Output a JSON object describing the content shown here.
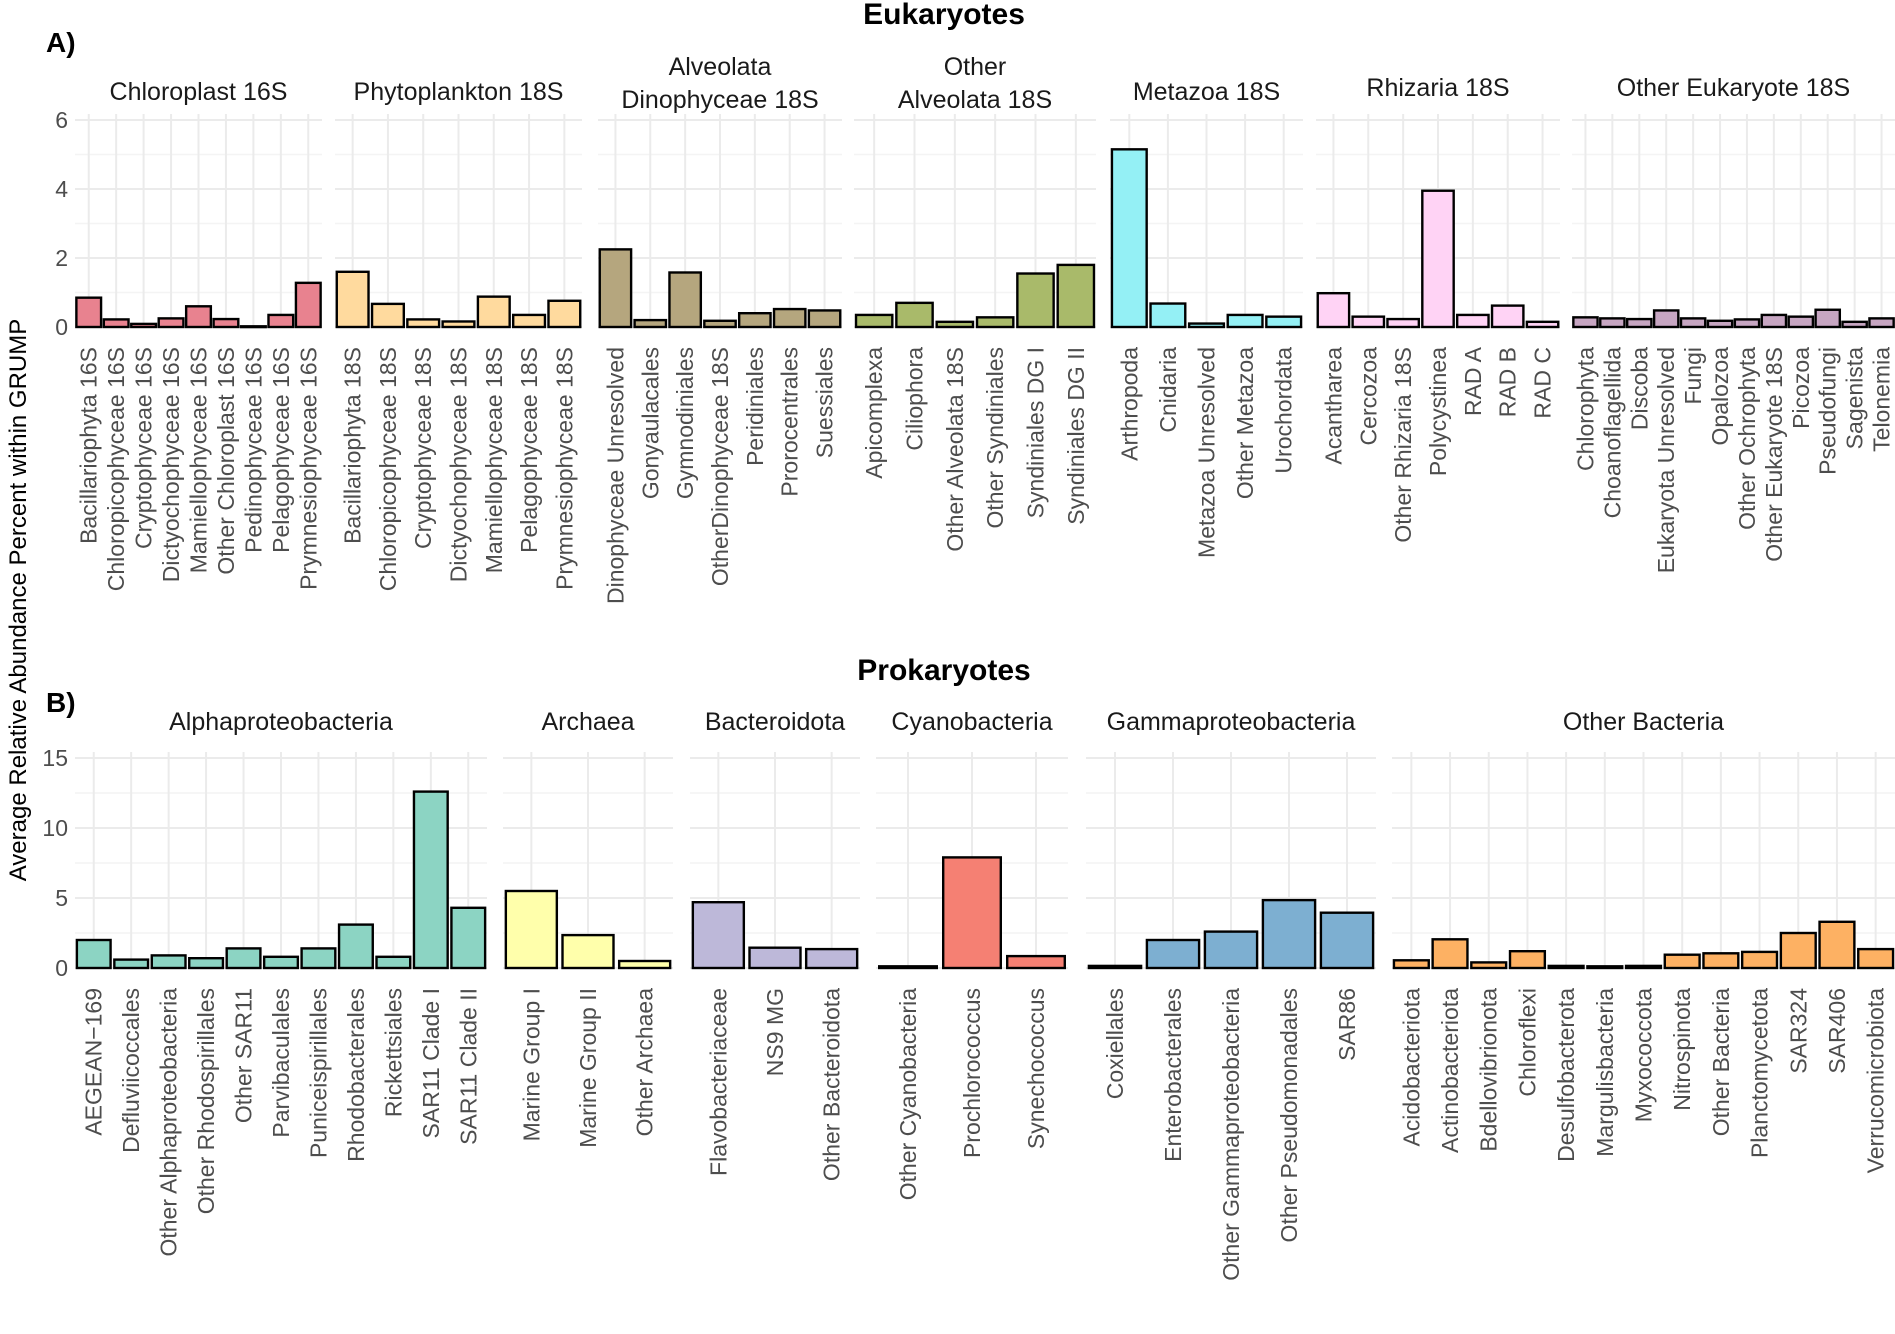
{
  "y_axis_label": "Average Relative Abundance Percent within GRUMP",
  "chart_data": [
    {
      "panel_label": "A)",
      "title": "Eukaryotes",
      "type": "bar",
      "ylim": [
        0,
        6
      ],
      "yticks": [
        0,
        2,
        4,
        6
      ],
      "facets": [
        {
          "title": "Chloroplast 16S",
          "color": "#E8828F",
          "categories": [
            "Bacillariophyta 16S",
            "Chloropicophyceae 16S",
            "Cryptophyceae 16S",
            "Dictyochophyceae 16S",
            "Mamiellophyceae 16S",
            "Other Chloroplast 16S",
            "Pedinophyceae 16S",
            "Pelagophyceae 16S",
            "Prymnesiophyceae 16S"
          ],
          "values": [
            0.85,
            0.22,
            0.09,
            0.25,
            0.6,
            0.23,
            0.02,
            0.35,
            1.28
          ]
        },
        {
          "title": "Phytoplankton 18S",
          "color": "#FFDA9E",
          "categories": [
            "Bacillariophyta 18S",
            "Chloropicophyceae 18S",
            "Cryptophyceae 18S",
            "Dictyochophyceae 18S",
            "Mamiellophyceae 18S",
            "Pelagophyceae 18S",
            "Prymnesiophyceae 18S"
          ],
          "values": [
            1.6,
            0.67,
            0.22,
            0.16,
            0.88,
            0.35,
            0.76
          ]
        },
        {
          "title": "Alveolata\nDinophyceae 18S",
          "color": "#B5A67E",
          "categories": [
            "Dinophyceae Unresolved",
            "Gonyaulacales",
            "Gymnodiniales",
            "OtherDinophyceae 18S",
            "Peridiniales",
            "Prorocentrales",
            "Suessiales"
          ],
          "values": [
            2.25,
            0.2,
            1.58,
            0.18,
            0.4,
            0.52,
            0.48
          ]
        },
        {
          "title": "Other\nAlveolata 18S",
          "color": "#A9BA6A",
          "categories": [
            "Apicomplexa",
            "Ciliophora",
            "Other Alveolata 18S",
            "Other Syndiniales",
            "Syndiniales DG I",
            "Syndiniales DG II"
          ],
          "values": [
            0.35,
            0.7,
            0.15,
            0.28,
            1.55,
            1.8
          ]
        },
        {
          "title": "Metazoa 18S",
          "color": "#94F0F5",
          "categories": [
            "Arthropoda",
            "Cnidaria",
            "Metazoa Unresolved",
            "Other Metazoa",
            "Urochordata"
          ],
          "values": [
            5.15,
            0.68,
            0.1,
            0.35,
            0.3
          ]
        },
        {
          "title": "Rhizaria 18S",
          "color": "#FFD3F5",
          "categories": [
            "Acantharea",
            "Cercozoa",
            "Other Rhizaria 18S",
            "Polycystinea",
            "RAD A",
            "RAD B",
            "RAD C"
          ],
          "values": [
            0.98,
            0.3,
            0.23,
            3.95,
            0.35,
            0.62,
            0.15
          ]
        },
        {
          "title": "Other Eukaryote 18S",
          "color": "#C7A6C2",
          "categories": [
            "Chlorophyta",
            "Choanoflagellida",
            "Discoba",
            "Eukaryota Unresolved",
            "Fungi",
            "Opalozoa",
            "Other Ochrophyta",
            "Other Eukaryote 18S",
            "Picozoa",
            "Pseudofungi",
            "Sagenista",
            "Telonemia"
          ],
          "values": [
            0.28,
            0.25,
            0.23,
            0.48,
            0.25,
            0.18,
            0.22,
            0.35,
            0.3,
            0.5,
            0.15,
            0.25
          ]
        }
      ]
    },
    {
      "panel_label": "B)",
      "title": "Prokaryotes",
      "type": "bar",
      "ylim": [
        0,
        15
      ],
      "yticks": [
        0,
        5,
        10,
        15
      ],
      "facets": [
        {
          "title": "Alphaproteobacteria",
          "color": "#8CD4C3",
          "categories": [
            "AEGEAN−169",
            "Defluviicoccales",
            "Other Alphaproteobacteria",
            "Other Rhodospirillales",
            "Other SAR11",
            "Parvibaculales",
            "Puniceispirillales",
            "Rhodobacterales",
            "Rickettsiales",
            "SAR11 Clade I",
            "SAR11 Clade II"
          ],
          "values": [
            2.0,
            0.6,
            0.9,
            0.7,
            1.4,
            0.8,
            1.4,
            3.1,
            0.8,
            12.6,
            4.3
          ]
        },
        {
          "title": "Archaea",
          "color": "#FFFFAB",
          "categories": [
            "Marine Group I",
            "Marine Group II",
            "Other Archaea"
          ],
          "values": [
            5.5,
            2.35,
            0.5
          ]
        },
        {
          "title": "Bacteroidota",
          "color": "#BDB8D9",
          "categories": [
            "Flavobacteriaceae",
            "NS9 MG",
            "Other Bacteroidota"
          ],
          "values": [
            4.7,
            1.45,
            1.35
          ]
        },
        {
          "title": "Cyanobacteria",
          "color": "#F58073",
          "categories": [
            "Other Cyanobacteria",
            "Prochlorococcus",
            "Synechococcus"
          ],
          "values": [
            0.12,
            7.9,
            0.85
          ]
        },
        {
          "title": "Gammaproteobacteria",
          "color": "#7DAFD1",
          "categories": [
            "Coxiellales",
            "Enterobacterales",
            "Other Gammaproteobacteria",
            "Other Pseudomonadales",
            "SAR86"
          ],
          "values": [
            0.15,
            2.0,
            2.6,
            4.85,
            3.95
          ]
        },
        {
          "title": "Other Bacteria",
          "color": "#FDB163",
          "categories": [
            "Acidobacteriota",
            "Actinobacteriota",
            "Bdellovibrionota",
            "Chloroflexi",
            "Desulfobacterota",
            "Margulisbacteria",
            "Myxococcota",
            "Nitrospinota",
            "Other Bacteria",
            "Planctomycetota",
            "SAR324",
            "SAR406",
            "Verrucomicrobiota"
          ],
          "values": [
            0.55,
            2.05,
            0.4,
            1.2,
            0.15,
            0.12,
            0.15,
            0.95,
            1.05,
            1.15,
            2.5,
            3.3,
            1.35
          ]
        }
      ]
    }
  ]
}
